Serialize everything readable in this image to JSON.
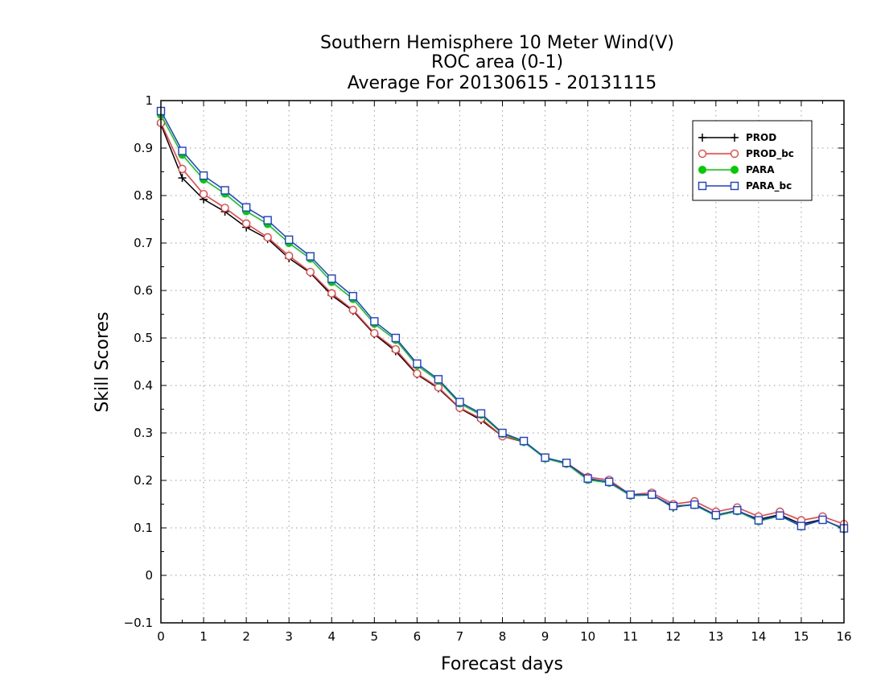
{
  "chart_data": {
    "type": "line",
    "title_lines": [
      "Southern Hemisphere 10 Meter Wind(V)",
      "ROC area (0-1)",
      "Average For 20130615 - 20131115"
    ],
    "xlabel": "Forecast days",
    "ylabel": "Skill Scores",
    "xlim": [
      0,
      16
    ],
    "ylim": [
      -0.1,
      1
    ],
    "x_ticks": [
      "0",
      "1",
      "2",
      "3",
      "4",
      "5",
      "6",
      "7",
      "8",
      "9",
      "10",
      "11",
      "12",
      "13",
      "14",
      "15",
      "16"
    ],
    "y_ticks": [
      "−0.1",
      "0",
      "0.1",
      "0.2",
      "0.3",
      "0.4",
      "0.5",
      "0.6",
      "0.7",
      "0.8",
      "0.9",
      "1"
    ],
    "grid": true,
    "legend_position": "top-right",
    "x": [
      0,
      0.5,
      1,
      1.5,
      2,
      2.5,
      3,
      3.5,
      4,
      4.5,
      5,
      5.5,
      6,
      6.5,
      7,
      7.5,
      8,
      8.5,
      9,
      9.5,
      10,
      10.5,
      11,
      11.5,
      12,
      12.5,
      13,
      13.5,
      14,
      14.5,
      15,
      15.5,
      16
    ],
    "series": [
      {
        "name": "PROD",
        "color": "#000000",
        "marker": "plus",
        "values": [
          0.95,
          0.837,
          0.792,
          0.766,
          0.733,
          0.709,
          0.668,
          0.637,
          0.59,
          0.557,
          0.508,
          0.472,
          0.423,
          0.394,
          0.352,
          0.327,
          0.293,
          0.281,
          0.247,
          0.235,
          0.203,
          0.196,
          0.168,
          0.17,
          0.143,
          0.15,
          0.127,
          0.136,
          0.118,
          0.128,
          0.108,
          0.118,
          0.097
        ]
      },
      {
        "name": "PROD_bc",
        "color": "#ff3333",
        "marker": "circle",
        "values": [
          0.953,
          0.856,
          0.803,
          0.774,
          0.741,
          0.712,
          0.673,
          0.639,
          0.594,
          0.559,
          0.51,
          0.476,
          0.425,
          0.396,
          0.353,
          0.33,
          0.293,
          0.282,
          0.248,
          0.237,
          0.207,
          0.201,
          0.17,
          0.174,
          0.15,
          0.156,
          0.134,
          0.143,
          0.124,
          0.134,
          0.116,
          0.124,
          0.108
        ]
      },
      {
        "name": "PARA",
        "color": "#00cc00",
        "marker": "filled-circle",
        "values": [
          0.97,
          0.886,
          0.834,
          0.804,
          0.767,
          0.74,
          0.7,
          0.667,
          0.618,
          0.582,
          0.53,
          0.496,
          0.442,
          0.41,
          0.362,
          0.338,
          0.298,
          0.281,
          0.246,
          0.235,
          0.201,
          0.195,
          0.168,
          0.169,
          0.145,
          0.148,
          0.125,
          0.135,
          0.114,
          0.125,
          0.103,
          0.117,
          0.098
        ]
      },
      {
        "name": "PARA_bc",
        "color": "#1a3de6",
        "marker": "square",
        "values": [
          0.978,
          0.894,
          0.842,
          0.811,
          0.775,
          0.748,
          0.707,
          0.672,
          0.625,
          0.588,
          0.535,
          0.5,
          0.446,
          0.413,
          0.365,
          0.341,
          0.3,
          0.283,
          0.248,
          0.237,
          0.204,
          0.197,
          0.17,
          0.17,
          0.146,
          0.149,
          0.127,
          0.137,
          0.116,
          0.126,
          0.104,
          0.117,
          0.099
        ]
      }
    ]
  }
}
